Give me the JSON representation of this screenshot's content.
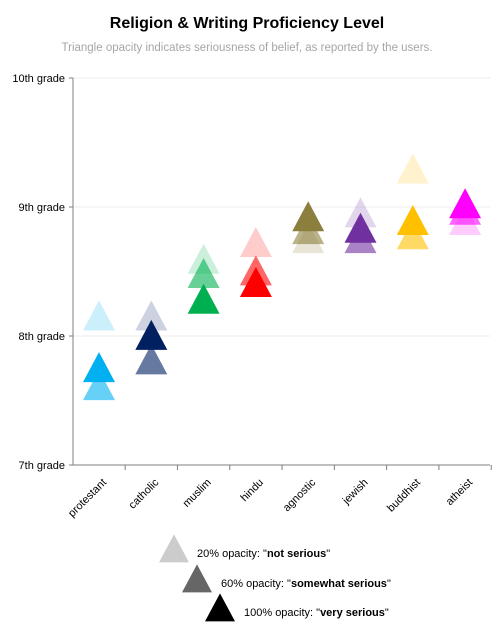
{
  "chart_data": {
    "type": "scatter",
    "title": "Religion & Writing Proficiency Level",
    "subtitle": "Triangle opacity indicates seriousness  of belief, as reported by the users.",
    "xlabel": "",
    "ylabel": "",
    "y_ticks": [
      {
        "value": 7,
        "label": "7th grade"
      },
      {
        "value": 8,
        "label": "8th grade"
      },
      {
        "value": 9,
        "label": "9th grade"
      },
      {
        "value": 10,
        "label": "10th grade"
      }
    ],
    "ylim": [
      7,
      10
    ],
    "gridlines": true,
    "categories": [
      "protestant",
      "catholic",
      "muslim",
      "hindu",
      "agnostic",
      "jewish",
      "buddhist",
      "atheist"
    ],
    "series": [
      {
        "category": "protestant",
        "color": "#00b0f0",
        "points": [
          {
            "opacity": 0.2,
            "value": 8.12
          },
          {
            "opacity": 0.6,
            "value": 7.58
          },
          {
            "opacity": 1.0,
            "value": 7.72
          }
        ]
      },
      {
        "category": "catholic",
        "color": "#002060",
        "points": [
          {
            "opacity": 0.2,
            "value": 8.12
          },
          {
            "opacity": 0.6,
            "value": 7.78
          },
          {
            "opacity": 1.0,
            "value": 7.97
          }
        ]
      },
      {
        "category": "muslim",
        "color": "#00b050",
        "points": [
          {
            "opacity": 0.2,
            "value": 8.56
          },
          {
            "opacity": 0.6,
            "value": 8.45
          },
          {
            "opacity": 1.0,
            "value": 8.25
          }
        ]
      },
      {
        "category": "hindu",
        "color": "#ff0000",
        "points": [
          {
            "opacity": 0.2,
            "value": 8.69
          },
          {
            "opacity": 0.6,
            "value": 8.47
          },
          {
            "opacity": 1.0,
            "value": 8.38
          }
        ]
      },
      {
        "category": "agnostic",
        "color": "#8c7e3c",
        "points": [
          {
            "opacity": 0.2,
            "value": 8.72
          },
          {
            "opacity": 0.6,
            "value": 8.79
          },
          {
            "opacity": 1.0,
            "value": 8.89
          }
        ]
      },
      {
        "category": "jewish",
        "color": "#7030a0",
        "points": [
          {
            "opacity": 0.2,
            "value": 8.92
          },
          {
            "opacity": 0.6,
            "value": 8.72
          },
          {
            "opacity": 1.0,
            "value": 8.8
          }
        ]
      },
      {
        "category": "buddhist",
        "color": "#ffc000",
        "points": [
          {
            "opacity": 0.2,
            "value": 9.26
          },
          {
            "opacity": 0.6,
            "value": 8.75
          },
          {
            "opacity": 1.0,
            "value": 8.86
          }
        ]
      },
      {
        "category": "atheist",
        "color": "#ff00ff",
        "points": [
          {
            "opacity": 0.2,
            "value": 8.86
          },
          {
            "opacity": 0.6,
            "value": 8.94
          },
          {
            "opacity": 1.0,
            "value": 8.99
          }
        ]
      }
    ],
    "legend": {
      "placement": "bottom",
      "color": "#000000",
      "items": [
        {
          "opacity": 0.2,
          "prefix": "20% opacity: \"",
          "strong": "not serious",
          "suffix": "\""
        },
        {
          "opacity": 0.6,
          "prefix": "60% opacity: \"",
          "strong": "somewhat serious",
          "suffix": "\""
        },
        {
          "opacity": 1.0,
          "prefix": "100% opacity: \"",
          "strong": "very serious",
          "suffix": "\""
        }
      ]
    }
  }
}
